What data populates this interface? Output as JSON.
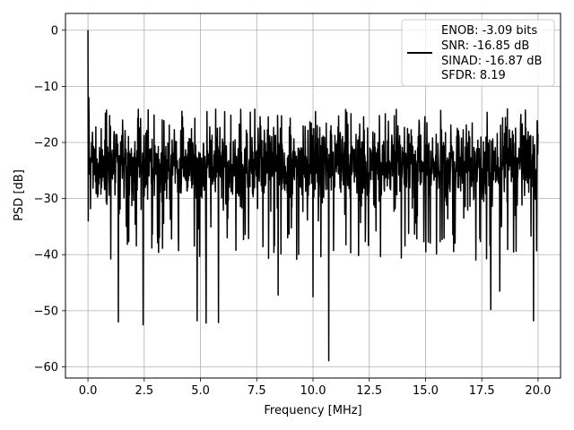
{
  "chart_data": {
    "type": "line",
    "title": "",
    "xlabel": "Frequency [MHz]",
    "ylabel": "PSD [dB]",
    "xlim": [
      -1,
      21
    ],
    "ylim": [
      -62,
      3
    ],
    "xticks": [
      0.0,
      2.5,
      5.0,
      7.5,
      10.0,
      12.5,
      15.0,
      17.5,
      20.0
    ],
    "xtick_labels": [
      "0.0",
      "2.5",
      "5.0",
      "7.5",
      "10.0",
      "12.5",
      "15.0",
      "17.5",
      "20.0"
    ],
    "yticks": [
      0,
      -10,
      -20,
      -30,
      -40,
      -50,
      -60
    ],
    "ytick_labels": [
      "0",
      "−10",
      "−20",
      "−30",
      "−40",
      "−50",
      "−60"
    ],
    "grid": true,
    "legend_position": "top-right",
    "series": [
      {
        "color": "#000000",
        "x_range": [
          0,
          20
        ],
        "peak": {
          "x": 0.0,
          "y": 0.0
        },
        "noise_floor_mean": -24,
        "noise_floor_band": [
          -33,
          -14
        ],
        "notable_dips": [
          {
            "x": 1.35,
            "y": -52
          },
          {
            "x": 2.45,
            "y": -52.5
          },
          {
            "x": 4.85,
            "y": -51.8
          },
          {
            "x": 5.25,
            "y": -52.2
          },
          {
            "x": 5.8,
            "y": -52.1
          },
          {
            "x": 10.7,
            "y": -58.9
          },
          {
            "x": 10.0,
            "y": -47.5
          },
          {
            "x": 8.45,
            "y": -47.2
          },
          {
            "x": 17.9,
            "y": -49.8
          },
          {
            "x": 19.8,
            "y": -51.8
          },
          {
            "x": 18.3,
            "y": -46.5
          }
        ]
      }
    ],
    "legend": {
      "lines": [
        "ENOB: -3.09 bits",
        "SNR: -16.85 dB",
        "SINAD: -16.87 dB",
        "SFDR: 8.19"
      ]
    }
  }
}
